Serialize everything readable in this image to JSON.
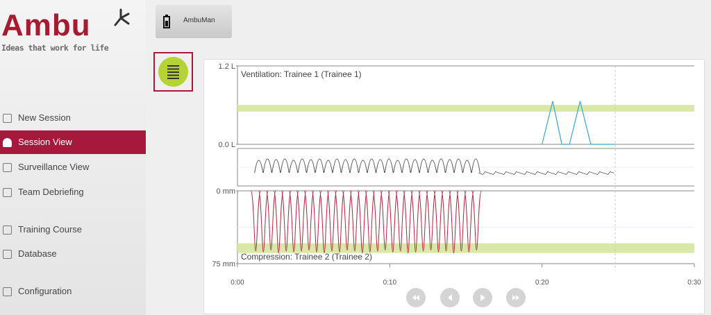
{
  "sidebar": {
    "logo": "Ambu",
    "tagline": "Ideas that work for life",
    "nav": [
      "New Session",
      "Session View",
      "Surveillance View",
      "Team Debriefing",
      "Training Course",
      "Database",
      "Configuration"
    ]
  },
  "device": "AmbuMan",
  "chart_data": [
    {
      "type": "line",
      "title": "Ventilation: Trainee 1 (Trainee 1)",
      "x": [
        20.0,
        20.7,
        21.3,
        21.8,
        22.5,
        23.2,
        24.8
      ],
      "values": [
        0,
        0.66,
        0,
        0,
        0.66,
        0,
        0
      ],
      "color": "#3aa6c8",
      "ylim": [
        0,
        1.2
      ],
      "yticks": [
        {
          "value": 1.2,
          "label": "1.2 L"
        },
        {
          "value": 0,
          "label": "0.0 L"
        }
      ],
      "target": [
        0.5,
        0.6
      ],
      "xlim": [
        0,
        30
      ]
    },
    {
      "type": "pulses",
      "x": [
        1.4,
        1.97,
        2.54,
        3.11,
        3.68,
        4.25,
        4.82,
        5.39,
        5.96,
        6.53,
        7.1,
        7.67,
        8.24,
        8.81,
        9.38,
        9.95,
        10.52,
        11.09,
        11.66,
        12.23,
        12.8,
        13.37,
        13.94,
        14.51,
        15.08,
        15.65
      ],
      "values": [
        0.9,
        1,
        0.95,
        1,
        0.9,
        1,
        0.95,
        1,
        0.9,
        1,
        0.95,
        1,
        0.9,
        1,
        0.95,
        1,
        0.9,
        1,
        0.95,
        1,
        0.9,
        1,
        0.95,
        1,
        0.9,
        1
      ],
      "color": "#555555",
      "xlim": [
        0,
        30
      ]
    },
    {
      "type": "pulses-down",
      "title": "Compression: Trainee 2 (Trainee 2)",
      "x": [
        1.2,
        1.7,
        2.2,
        2.7,
        3.2,
        3.7,
        4.2,
        4.7,
        5.2,
        5.7,
        6.2,
        6.7,
        7.2,
        7.7,
        8.2,
        8.7,
        9.2,
        9.7,
        10.2,
        10.7,
        11.2,
        11.7,
        12.2,
        12.7,
        13.2,
        13.7,
        14.2,
        14.7,
        15.2,
        15.7
      ],
      "values": [
        62,
        63,
        61,
        64,
        62,
        63,
        62,
        61,
        63,
        64,
        62,
        63,
        61,
        62,
        64,
        63,
        62,
        61,
        63,
        62,
        64,
        63,
        62,
        61,
        63,
        62,
        64,
        62,
        63,
        61
      ],
      "color": "#b0243f",
      "ylim": [
        0,
        75
      ],
      "yticks": [
        {
          "value": 0,
          "label": "0 mm"
        },
        {
          "value": 75,
          "label": "75 mm"
        }
      ],
      "target": [
        54,
        64
      ],
      "xlim": [
        0,
        30
      ],
      "xticks": [
        {
          "value": 0,
          "label": "0:00"
        },
        {
          "value": 10,
          "label": "0:10"
        },
        {
          "value": 20,
          "label": "0:20"
        },
        {
          "value": 30,
          "label": "0:30"
        }
      ],
      "session_end": 24.8
    }
  ]
}
